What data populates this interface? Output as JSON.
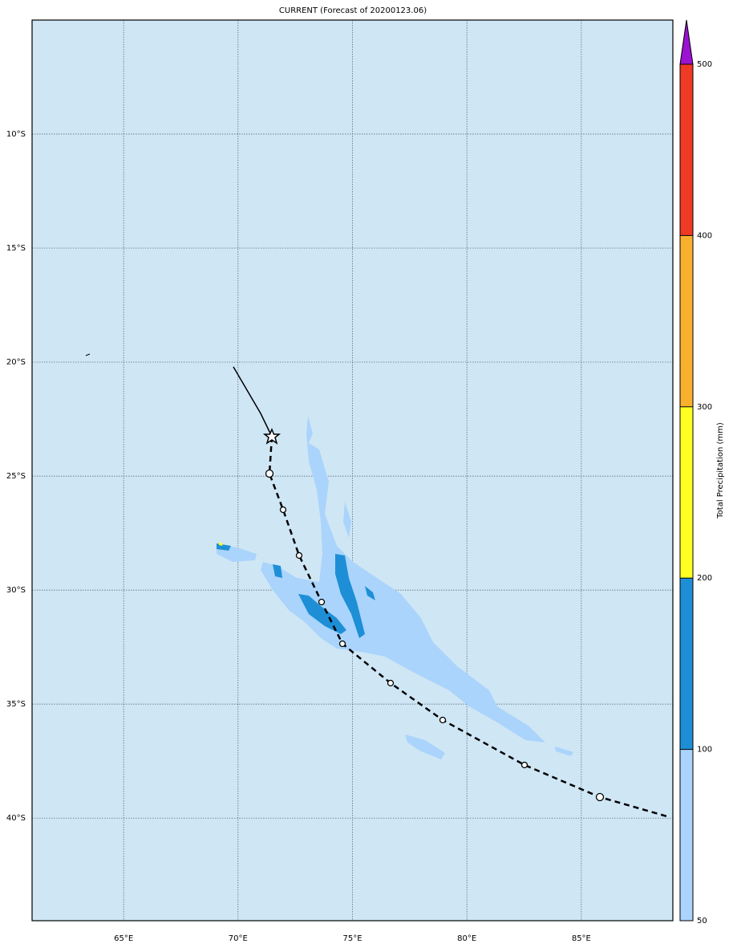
{
  "map": {
    "title": "CURRENT (Forecast of 20200123.06)",
    "xlim": [
      61,
      89
    ],
    "ylim": [
      -44.5,
      -5
    ],
    "xticks": [
      {
        "value": 65,
        "label": "65°E"
      },
      {
        "value": 70,
        "label": "70°E"
      },
      {
        "value": 75,
        "label": "75°E"
      },
      {
        "value": 80,
        "label": "80°E"
      },
      {
        "value": 85,
        "label": "85°E"
      }
    ],
    "yticks": [
      {
        "value": -10,
        "label": "10°S"
      },
      {
        "value": -15,
        "label": "15°S"
      },
      {
        "value": -20,
        "label": "20°S"
      },
      {
        "value": -25,
        "label": "25°S"
      },
      {
        "value": -30,
        "label": "30°S"
      },
      {
        "value": -35,
        "label": "35°S"
      },
      {
        "value": -40,
        "label": "40°S"
      }
    ],
    "grid": true,
    "colorbar": {
      "label": "Total Precipitation (mm)",
      "ticks": [
        50,
        100,
        200,
        300,
        400,
        500
      ],
      "colors": [
        "#aad4fb",
        "#1e8fd6",
        "#ffff22",
        "#f9b12d",
        "#ef3a24"
      ],
      "extend_color": "#9b12d2"
    }
  }
}
